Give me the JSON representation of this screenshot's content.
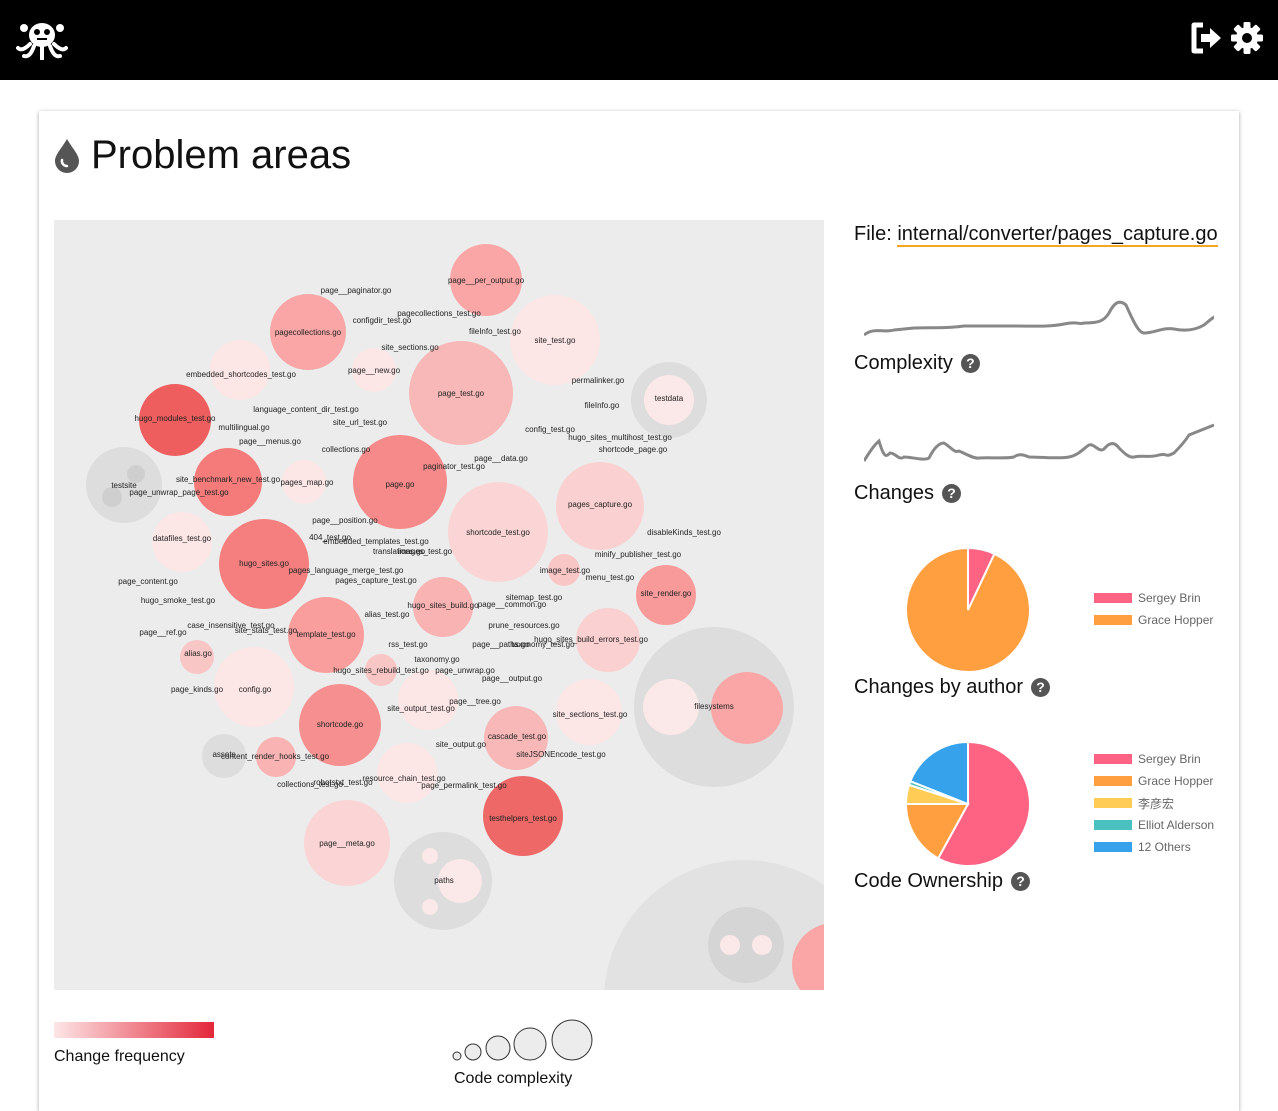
{
  "header": {
    "logout_icon": "sign-out-icon",
    "settings_icon": "gear-icon",
    "logo": "octopus-logo"
  },
  "page": {
    "title": "Problem areas",
    "title_icon": "drop-icon"
  },
  "details": {
    "file_prefix": "File:",
    "file_path": "internal/converter/pages_capture.go",
    "complexity_label": "Complexity",
    "changes_label": "Changes",
    "changes_by_author_label": "Changes by author",
    "code_ownership_label": "Code Ownership",
    "help_glyph": "?"
  },
  "changes_by_author": [
    {
      "name": "Sergey Brin",
      "share": 0.07,
      "color": "#ff6384"
    },
    {
      "name": "Grace Hopper",
      "share": 0.93,
      "color": "#ff9f40"
    }
  ],
  "code_ownership": [
    {
      "name": "Sergey Brin",
      "share": 0.58,
      "color": "#ff6384"
    },
    {
      "name": "Grace Hopper",
      "share": 0.17,
      "color": "#ff9f40"
    },
    {
      "name": "李彦宏",
      "share": 0.05,
      "color": "#ffcd56"
    },
    {
      "name": "Elliot Alderson",
      "share": 0.01,
      "color": "#4bc0c0"
    },
    {
      "name": "12 Others",
      "share": 0.19,
      "color": "#36a2eb"
    }
  ],
  "legend": {
    "change_frequency": "Change frequency",
    "code_complexity": "Code complexity"
  },
  "bubble_labels": [
    "page__paginator.go",
    "page__per_output.go",
    "pagecollections_test.go",
    "configdir_test.go",
    "pagecollections.go",
    "fileInfo_test.go",
    "site_test.go",
    "site_sections.go",
    "page__new.go",
    "embedded_shortcodes_test.go",
    "page_test.go",
    "permalinker.go",
    "testdata",
    "hugo_modules_test.go",
    "language_content_dir_test.go",
    "fileInfo.go",
    "multilingual.go",
    "site_url_test.go",
    "config_test.go",
    "hugo_sites_multihost_test.go",
    "page__menus.go",
    "collections.go",
    "shortcode_page.go",
    "page__data.go",
    "paginator_test.go",
    "testsite",
    "site_benchmark_new_test.go",
    "pages_map.go",
    "page.go",
    "page_unwrap_page_test.go",
    "pages_capture.go",
    "page__position.go",
    "shortcode_test.go",
    "disableKinds_test.go",
    "datafiles_test.go",
    "404_test.go",
    "embedded_templates_test.go",
    "translations.go",
    "images_test.go",
    "minify_publisher_test.go",
    "hugo_sites.go",
    "pages_language_merge_test.go",
    "image_test.go",
    "menu_test.go",
    "pages_capture_test.go",
    "page_content.go",
    "site_render.go",
    "hugo_smoke_test.go",
    "alias_test.go",
    "hugo_sites_build.go",
    "sitemap_test.go",
    "page__common.go",
    "case_insensitive_test.go",
    "site_stats_test.go",
    "prune_resources.go",
    "page__ref.go",
    "template_test.go",
    "rss_test.go",
    "page__paths.go",
    "taxonomy_test.go",
    "hugo_sites_build_errors_test.go",
    "alias.go",
    "taxonomy.go",
    "hugo_sites_rebuild_test.go",
    "page_unwrap.go",
    "page__output.go",
    "page_kinds.go",
    "config.go",
    "filesystems",
    "page__tree.go",
    "site_output_test.go",
    "site_sections_test.go",
    "shortcode.go",
    "cascade_test.go",
    "assets",
    "content_render_hooks_test.go",
    "site_output.go",
    "siteJSONEncode_test.go",
    "collections_test.go",
    "robotstxt_test.go",
    "resource_chain_test.go",
    "page_permalink_test.go",
    "testhelpers_test.go",
    "page__meta.go",
    "paths",
    "pages_capture.go"
  ]
}
